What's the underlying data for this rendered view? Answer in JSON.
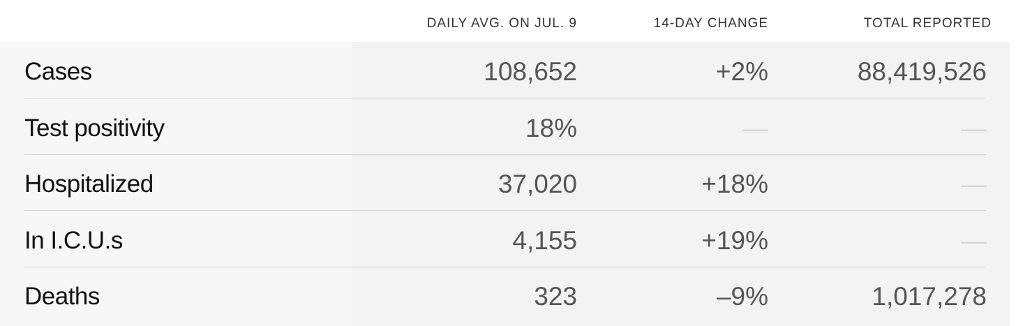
{
  "table": {
    "headers": [
      "DAILY AVG. ON JUL. 9",
      "14-DAY CHANGE",
      "TOTAL REPORTED"
    ],
    "rows": [
      [
        "Cases",
        "108,652",
        "+2%",
        "88,419,526"
      ],
      [
        "Test positivity",
        "18%",
        "—",
        "—"
      ],
      [
        "Hospitalized",
        "37,020",
        "+18%",
        "—"
      ],
      [
        "In I.C.U.s",
        "4,155",
        "+19%",
        "—"
      ],
      [
        "Deaths",
        "323",
        "–9%",
        "1,017,278"
      ]
    ]
  }
}
